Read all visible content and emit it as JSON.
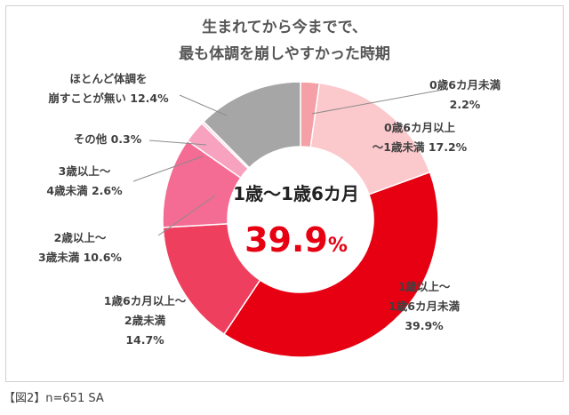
{
  "title_lines": [
    "生まれてから今までで、",
    "最も体調を崩しやすかった時期"
  ],
  "center": {
    "label": "1歳〜1歳6カ月",
    "value": "39.9",
    "unit": "%"
  },
  "footnote": "【図2】n=651 SA",
  "chart_data": {
    "type": "pie",
    "title": "生まれてから今までで、最も体調を崩しやすかった時期",
    "donut": true,
    "slices": [
      {
        "name": "0歳6カ月未満",
        "value": 2.2,
        "label_lines": [
          "0歳6カ月未満",
          "2.2%"
        ],
        "color": "#f4a0a6"
      },
      {
        "name": "0歳6カ月以上〜1歳未満",
        "value": 17.2,
        "label_lines": [
          "0歳6カ月以上",
          "〜1歳未満 17.2%"
        ],
        "color": "#fbc8cc"
      },
      {
        "name": "1歳以上〜1歳6カ月未満",
        "value": 39.9,
        "label_lines": [
          "1歳以上〜",
          "1歳6カ月未満",
          "39.9%"
        ],
        "color": "#e60012"
      },
      {
        "name": "1歳6カ月以上〜2歳未満",
        "value": 14.7,
        "label_lines": [
          "1歳6カ月以上〜",
          "2歳未満",
          "14.7%"
        ],
        "color": "#ef3f5f"
      },
      {
        "name": "2歳以上〜3歳未満",
        "value": 10.6,
        "label_lines": [
          "2歳以上〜",
          "3歳未満 10.6%"
        ],
        "color": "#f46b93"
      },
      {
        "name": "3歳以上〜4歳未満",
        "value": 2.6,
        "label_lines": [
          "3歳以上〜",
          "4歳未満 2.6%"
        ],
        "color": "#f7a3c0"
      },
      {
        "name": "その他",
        "value": 0.3,
        "label_lines": [
          "その他 0.3%"
        ],
        "color": "#fbd3df"
      },
      {
        "name": "ほとんど体調を崩すことが無い",
        "value": 12.4,
        "label_lines": [
          "ほとんど体調を",
          "崩すことが無い 12.4%"
        ],
        "color": "#a6a6a6"
      }
    ]
  }
}
